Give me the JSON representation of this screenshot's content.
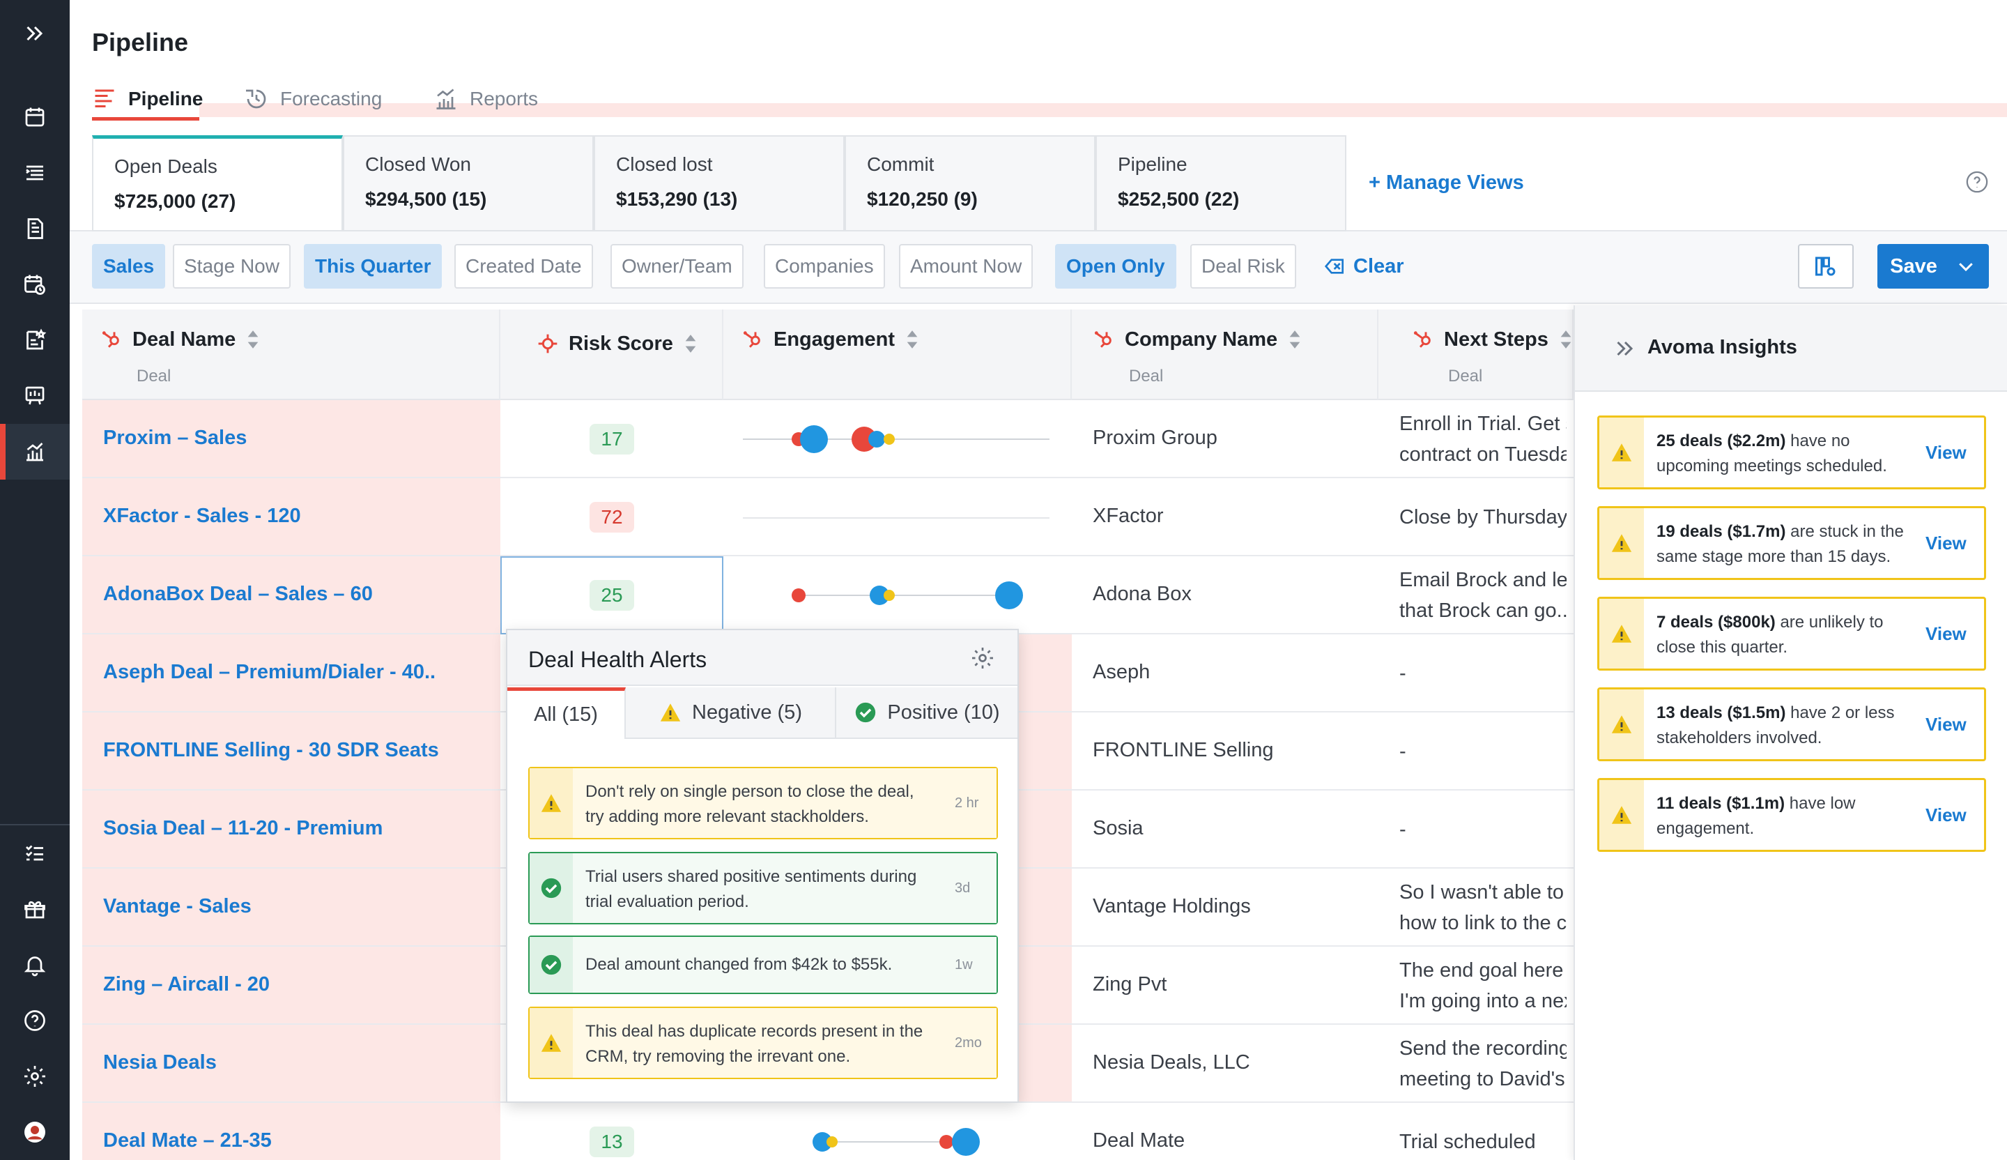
{
  "header": {
    "title": "Pipeline",
    "tabs": [
      {
        "label": "Pipeline",
        "icon": "list-lines-icon"
      },
      {
        "label": "Forecasting",
        "icon": "clock-history-icon"
      },
      {
        "label": "Reports",
        "icon": "bar-chart-icon"
      }
    ]
  },
  "views": [
    {
      "name": "Open Deals",
      "value": "$725,000 (27)"
    },
    {
      "name": "Closed Won",
      "value": "$294,500 (15)"
    },
    {
      "name": "Closed lost",
      "value": "$153,290 (13)"
    },
    {
      "name": "Commit",
      "value": "$120,250 (9)"
    },
    {
      "name": "Pipeline",
      "value": "$252,500 (22)"
    }
  ],
  "manage_views": "+ Manage Views",
  "filters": [
    {
      "label": "Sales",
      "selected": true
    },
    {
      "label": "Stage Now",
      "selected": false
    },
    {
      "label": "This Quarter",
      "selected": true
    },
    {
      "label": "Created Date",
      "selected": false
    },
    {
      "label": "Owner/Team",
      "selected": false
    },
    {
      "label": "Companies",
      "selected": false
    },
    {
      "label": "Amount Now",
      "selected": false
    },
    {
      "label": "Open Only",
      "selected": true
    },
    {
      "label": "Deal Risk",
      "selected": false
    }
  ],
  "clear_label": "Clear",
  "save_label": "Save",
  "columns": {
    "deal_name": "Deal Name",
    "deal_sub": "Deal",
    "risk_score": "Risk Score",
    "engagement": "Engagement",
    "company_name": "Company Name",
    "company_sub": "Deal",
    "next_steps": "Next Steps",
    "next_sub": "Deal"
  },
  "rows": [
    {
      "deal": "Proxim – Sales",
      "risk": "17",
      "company": "Proxim Group",
      "next": [
        "Enroll in Trial. Get s",
        "contract on Tuesday"
      ]
    },
    {
      "deal": "XFactor - Sales - 120",
      "risk": "72",
      "company": "XFactor",
      "next": [
        "Close by Thursday"
      ]
    },
    {
      "deal": "AdonaBox Deal – Sales – 60",
      "risk": "25",
      "company": "Adona Box",
      "next": [
        "Email Brock and let",
        "that Brock can go..."
      ]
    },
    {
      "deal": "Aseph Deal – Premium/Dialer - 40..",
      "risk": "",
      "company": "Aseph",
      "next": [
        "-"
      ]
    },
    {
      "deal": "FRONTLINE Selling - 30 SDR Seats",
      "risk": "",
      "company": "FRONTLINE Selling",
      "next": [
        "-"
      ]
    },
    {
      "deal": "Sosia Deal – 11-20 - Premium",
      "risk": "",
      "company": "Sosia",
      "next": [
        "-"
      ]
    },
    {
      "deal": "Vantage - Sales",
      "risk": "",
      "company": "Vantage Holdings",
      "next": [
        "So I wasn't able to f",
        "how to link to the c"
      ]
    },
    {
      "deal": "Zing – Aircall - 20",
      "risk": "",
      "company": "Zing Pvt",
      "next": [
        "The end goal here is",
        "I'm going into a nex"
      ]
    },
    {
      "deal": "Nesia Deals",
      "risk": "",
      "company": "Nesia Deals, LLC",
      "next": [
        "Send the recording",
        "meeting to David's"
      ]
    },
    {
      "deal": "Deal Mate – 21-35",
      "risk": "13",
      "company": "Deal Mate",
      "next": [
        "Trial scheduled"
      ]
    }
  ],
  "popup": {
    "title": "Deal Health Alerts",
    "tabs": [
      "All (15)",
      "Negative (5)",
      "Positive (10)"
    ],
    "alerts": [
      {
        "type": "warn",
        "text": [
          "Don't rely on single person to close the deal,",
          "try adding more relevant stackholders."
        ],
        "time": "2 hr"
      },
      {
        "type": "ok",
        "text": [
          "Trial users shared positive sentiments during",
          "trial evaluation period."
        ],
        "time": "3d"
      },
      {
        "type": "ok",
        "text": [
          "Deal amount changed from $42k to $55k."
        ],
        "time": "1w"
      },
      {
        "type": "warn",
        "text": [
          "This deal has duplicate records present in the",
          "CRM, try removing the irrevant one."
        ],
        "time": "2mo"
      }
    ]
  },
  "insights": {
    "title": "Avoma Insights",
    "view_label": "View",
    "items": [
      {
        "bold": "25 deals ($2.2m)",
        "rest1": " have no",
        "rest2": "upcoming meetings scheduled."
      },
      {
        "bold": "19 deals ($1.7m)",
        "rest1": " are stuck in the",
        "rest2": "same stage more than 15 days."
      },
      {
        "bold": "7 deals ($800k)",
        "rest1": " are unlikely to",
        "rest2": "close this quarter."
      },
      {
        "bold": "13 deals ($1.5m)",
        "rest1": " have 2 or less",
        "rest2": "stakeholders involved."
      },
      {
        "bold": "11 deals ($1.1m)",
        "rest1": " have low",
        "rest2": "engagement."
      }
    ]
  },
  "colors": {
    "accent": "#1a7ad0",
    "brand_red": "#e8473b",
    "warn": "#f0c419",
    "ok": "#2a9a55",
    "rail": "#1f2630"
  }
}
